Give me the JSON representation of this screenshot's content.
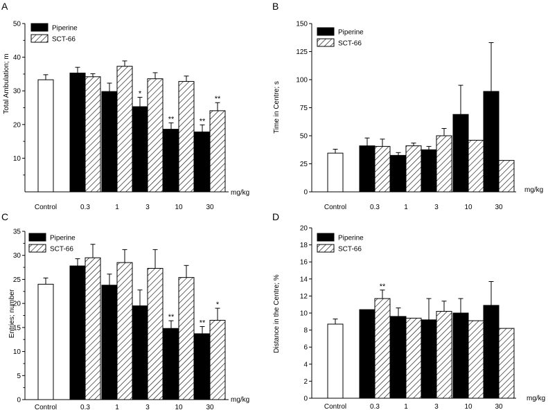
{
  "chart_data": [
    {
      "type": "bar",
      "panel": "A",
      "ylabel": "Total Ambulation; m",
      "xunit": "mg/kg",
      "ylim": [
        0,
        50
      ],
      "yticks": [
        10,
        20,
        30,
        40,
        50
      ],
      "categories": [
        "Control",
        "0.3",
        "1",
        "3",
        "10",
        "30"
      ],
      "control": {
        "value": 33.3,
        "error": 1.5
      },
      "series": [
        {
          "name": "Piperine",
          "values": [
            null,
            35.3,
            29.8,
            25.3,
            18.6,
            17.8
          ],
          "errors": [
            null,
            1.7,
            2.5,
            2.8,
            1.9,
            2.1
          ]
        },
        {
          "name": "SCT-66",
          "values": [
            null,
            34.2,
            37.3,
            33.6,
            32.8,
            24.1
          ],
          "errors": [
            null,
            0.9,
            1.6,
            1.8,
            1.6,
            2.4
          ]
        }
      ],
      "annotations": [
        {
          "text": "*",
          "category": "3",
          "series": "Piperine"
        },
        {
          "text": "**",
          "category": "10",
          "series": "Piperine"
        },
        {
          "text": "**",
          "category": "30",
          "series": "Piperine"
        },
        {
          "text": "**",
          "category": "30",
          "series": "SCT-66"
        }
      ]
    },
    {
      "type": "bar",
      "panel": "B",
      "ylabel": "Time in Centre; s",
      "xunit": "mg/kg",
      "ylim": [
        0,
        150
      ],
      "yticks": [
        0,
        25,
        50,
        75,
        100,
        125,
        150
      ],
      "categories": [
        "Control",
        "0.3",
        "1",
        "3",
        "10",
        "30"
      ],
      "control": {
        "value": 34.5,
        "error": 3.5
      },
      "series": [
        {
          "name": "Piperine",
          "values": [
            null,
            41,
            32.5,
            37.5,
            69,
            89.5
          ],
          "errors": [
            null,
            7,
            2.5,
            3,
            26,
            43.5
          ]
        },
        {
          "name": "SCT-66",
          "values": [
            null,
            40.5,
            41,
            50,
            46,
            28
          ],
          "errors": [
            null,
            6.5,
            2.5,
            6.5,
            0,
            0
          ]
        }
      ],
      "annotations": []
    },
    {
      "type": "bar",
      "panel": "C",
      "ylabel": "Entries; number",
      "xunit": "mg/kg",
      "ylim": [
        0,
        35
      ],
      "yticks": [
        0,
        5,
        10,
        15,
        20,
        25,
        30,
        35
      ],
      "categories": [
        "Control",
        "0.3",
        "1",
        "3",
        "10",
        "30"
      ],
      "control": {
        "value": 24,
        "error": 1.3
      },
      "series": [
        {
          "name": "Piperine",
          "values": [
            null,
            27.8,
            23.8,
            19.5,
            14.8,
            13.7
          ],
          "errors": [
            null,
            1.5,
            2.3,
            3.3,
            1.6,
            1.5
          ]
        },
        {
          "name": "SCT-66",
          "values": [
            null,
            29.5,
            28.5,
            27.3,
            25.4,
            16.5
          ],
          "errors": [
            null,
            2.8,
            2.7,
            3.9,
            2.5,
            2.5
          ]
        }
      ],
      "annotations": [
        {
          "text": "**",
          "category": "10",
          "series": "Piperine"
        },
        {
          "text": "**",
          "category": "30",
          "series": "Piperine"
        },
        {
          "text": "*",
          "category": "30",
          "series": "SCT-66"
        }
      ]
    },
    {
      "type": "bar",
      "panel": "D",
      "ylabel": "Distance in the Centre; %",
      "xunit": "mg/kg",
      "ylim": [
        0,
        20
      ],
      "yticks": [
        0,
        2,
        4,
        6,
        8,
        10,
        12,
        14,
        16,
        18,
        20
      ],
      "categories": [
        "Control",
        "0.3",
        "1",
        "3",
        "10",
        "30"
      ],
      "control": {
        "value": 8.7,
        "error": 0.6
      },
      "series": [
        {
          "name": "Piperine",
          "values": [
            null,
            10.4,
            9.6,
            9.2,
            10,
            10.9
          ],
          "errors": [
            null,
            0,
            1,
            2.5,
            1.7,
            2.8
          ]
        },
        {
          "name": "SCT-66",
          "values": [
            null,
            11.7,
            9.4,
            10.2,
            9.1,
            8.2
          ],
          "errors": [
            null,
            1,
            0,
            1.2,
            0,
            0
          ]
        }
      ],
      "annotations": [
        {
          "text": "**",
          "category": "0.3",
          "series": "SCT-66"
        }
      ]
    }
  ]
}
